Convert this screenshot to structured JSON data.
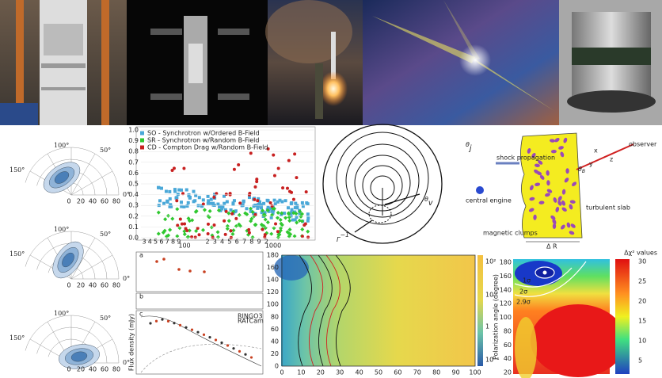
{
  "polar_plots": [
    {
      "angle_labels": [
        "100°",
        "50°",
        "150°",
        "0°"
      ],
      "radial_labels": [
        "0",
        "20",
        "40",
        "60",
        "80"
      ]
    },
    {
      "angle_labels": [
        "100°",
        "50°",
        "150°",
        "0°"
      ],
      "radial_labels": [
        "0",
        "20",
        "40",
        "60",
        "80"
      ]
    },
    {
      "angle_labels": [
        "100°",
        "50°",
        "150°",
        "0°"
      ],
      "radial_labels": [
        "0",
        "20",
        "40",
        "60",
        "80"
      ]
    }
  ],
  "scatter_plot": {
    "legend": [
      "SO - Synchrotron w/Ordered B-Field",
      "SR - Synchrotron w/Random B-Field",
      "CD - Compton Drag  w/Random B-Field"
    ],
    "yticks": [
      "0.0",
      "0.1",
      "0.2",
      "0.3",
      "0.4",
      "0.5",
      "0.6",
      "0.7",
      "0.8",
      "0.9",
      "1.0"
    ],
    "xticks": [
      "100",
      "1000"
    ],
    "minor_xticks": [
      "3",
      "4",
      "5",
      "6",
      "7",
      "8",
      "9",
      "2",
      "3",
      "4",
      "5",
      "6",
      "7",
      "8",
      "9",
      "2"
    ]
  },
  "jet_diagram": {
    "theta_j": {
      "symbol": "θ",
      "subscript": "j"
    },
    "theta_v": {
      "symbol": "θ",
      "subscript": "v"
    },
    "gamma": {
      "symbol": "Γ",
      "superscript": "−1"
    }
  },
  "shock_diagram": {
    "shock_propagation": "shock propagation",
    "observer": "observer",
    "central_engine": "central engine",
    "turbulent_slab": "turbulent slab",
    "magnetic_clumps": "magnetic clumps",
    "delta_r": "Δ R",
    "theta_b": {
      "symbol": "θ",
      "subscript": "B"
    },
    "axes": [
      "x",
      "y",
      "z"
    ]
  },
  "light_curve": {
    "panel_labels": [
      "a",
      "b",
      "c"
    ],
    "legend": [
      "RINGO3",
      "RATCam"
    ],
    "ylabel": "Flux density (mJy)"
  },
  "heatmap": {
    "yticks": [
      "0",
      "20",
      "40",
      "60",
      "80",
      "100",
      "120",
      "140",
      "160",
      "180"
    ],
    "xticks": [
      "0",
      "10",
      "20",
      "30",
      "40",
      "50",
      "60",
      "70",
      "80",
      "90",
      "100"
    ],
    "colorbar": [
      "10²",
      "10",
      "1",
      "10⁻¹"
    ]
  },
  "chi2_map": {
    "title": "Δχ² values",
    "ylabel": "Polarization angle (degree)",
    "yticks": [
      "20",
      "40",
      "60",
      "80",
      "100",
      "120",
      "140",
      "160",
      "180"
    ],
    "colorbar": [
      "5",
      "10",
      "15",
      "20",
      "25",
      "30"
    ],
    "contours": [
      "1σ",
      "2σ",
      "2.9σ"
    ]
  }
}
